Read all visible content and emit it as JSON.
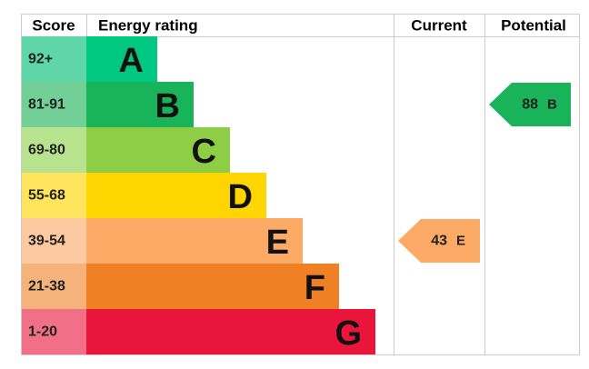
{
  "header": {
    "score": "Score",
    "energy_rating": "Energy rating",
    "current": "Current",
    "potential": "Potential"
  },
  "bands": [
    {
      "range": "92+",
      "letter": "A",
      "color": "#00c781",
      "score_color": "#5fd6aa"
    },
    {
      "range": "81-91",
      "letter": "B",
      "color": "#19b459",
      "score_color": "#72cf95"
    },
    {
      "range": "69-80",
      "letter": "C",
      "color": "#8dce46",
      "score_color": "#b9e28e"
    },
    {
      "range": "55-68",
      "letter": "D",
      "color": "#ffd500",
      "score_color": "#ffe45e"
    },
    {
      "range": "39-54",
      "letter": "E",
      "color": "#fcaa65",
      "score_color": "#fdc9a0"
    },
    {
      "range": "21-38",
      "letter": "F",
      "color": "#ef8023",
      "score_color": "#f5b27a"
    },
    {
      "range": "1-20",
      "letter": "G",
      "color": "#e9153b",
      "score_color": "#f27087"
    }
  ],
  "current": {
    "value": 43,
    "letter": "E"
  },
  "potential": {
    "value": 88,
    "letter": "B"
  }
}
